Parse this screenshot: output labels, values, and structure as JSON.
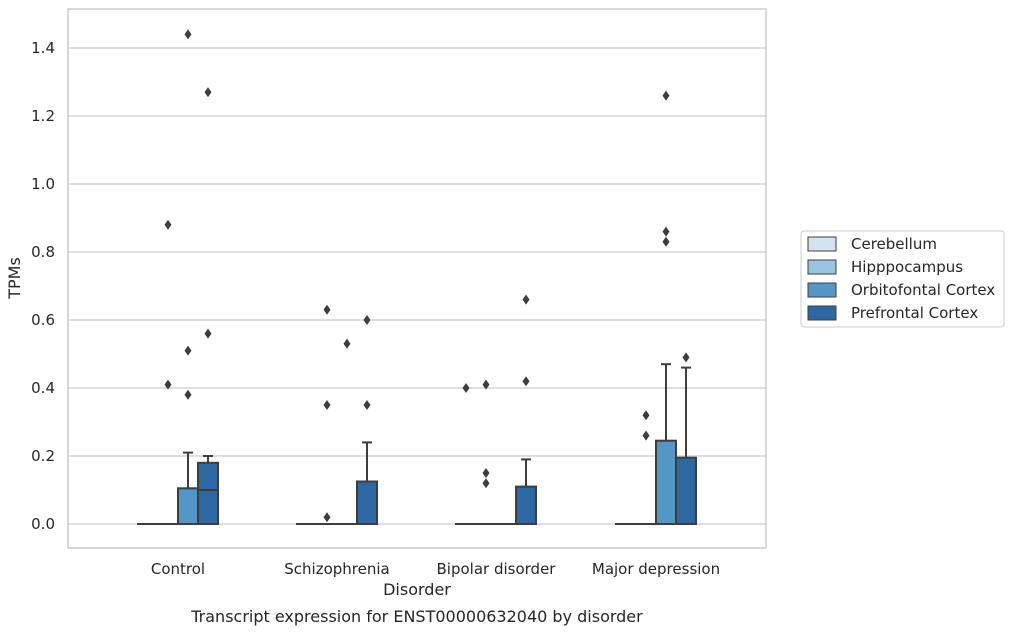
{
  "caption": "Transcript expression for ENST00000632040 by disorder",
  "chart_data": {
    "type": "box",
    "xlabel": "Disorder",
    "ylabel": "TPMs",
    "categories": [
      "Control",
      "Schizophrenia",
      "Bipolar disorder",
      "Major depression"
    ],
    "ylim": [
      -0.07,
      1.52
    ],
    "yticks": [
      0.0,
      0.2,
      0.4,
      0.6,
      0.8,
      1.0,
      1.2,
      1.4
    ],
    "ytick_labels": [
      "0.0",
      "0.2",
      "0.4",
      "0.6",
      "0.8",
      "1.0",
      "1.2",
      "1.4"
    ],
    "grid": "horizontal",
    "legend_position": "right",
    "series": [
      {
        "name": "Cerebellum",
        "color": "#d4e3f1",
        "boxes": [
          {
            "q1": 0,
            "median": 0,
            "q3": 0,
            "whisker_low": 0,
            "whisker_high": 0,
            "outliers": []
          },
          {
            "q1": 0,
            "median": 0,
            "q3": 0,
            "whisker_low": 0,
            "whisker_high": 0,
            "outliers": []
          },
          {
            "q1": 0,
            "median": 0,
            "q3": 0,
            "whisker_low": 0,
            "whisker_high": 0,
            "outliers": [
              0.4
            ]
          },
          {
            "q1": 0,
            "median": 0,
            "q3": 0,
            "whisker_low": 0,
            "whisker_high": 0,
            "outliers": []
          }
        ]
      },
      {
        "name": "Hipppocampus",
        "color": "#9cc3e0",
        "boxes": [
          {
            "q1": 0,
            "median": 0,
            "q3": 0,
            "whisker_low": 0,
            "whisker_high": 0,
            "outliers": [
              0.88,
              0.41
            ]
          },
          {
            "q1": 0,
            "median": 0,
            "q3": 0,
            "whisker_low": 0,
            "whisker_high": 0,
            "outliers": [
              0.63,
              0.35,
              0.02
            ]
          },
          {
            "q1": 0,
            "median": 0,
            "q3": 0,
            "whisker_low": 0,
            "whisker_high": 0,
            "outliers": [
              0.41,
              0.15,
              0.12
            ]
          },
          {
            "q1": 0,
            "median": 0,
            "q3": 0,
            "whisker_low": 0,
            "whisker_high": 0,
            "outliers": [
              0.32,
              0.26
            ]
          }
        ]
      },
      {
        "name": "Orbitofontal Cortex",
        "color": "#5497c6",
        "boxes": [
          {
            "q1": 0,
            "median": 0,
            "q3": 0.105,
            "whisker_low": 0,
            "whisker_high": 0.21,
            "outliers": [
              1.44,
              0.51,
              0.38
            ]
          },
          {
            "q1": 0,
            "median": 0,
            "q3": 0,
            "whisker_low": 0,
            "whisker_high": 0,
            "outliers": [
              0.53
            ]
          },
          {
            "q1": 0,
            "median": 0,
            "q3": 0,
            "whisker_low": 0,
            "whisker_high": 0,
            "outliers": []
          },
          {
            "q1": 0,
            "median": 0,
            "q3": 0.245,
            "whisker_low": 0,
            "whisker_high": 0.47,
            "outliers": [
              1.26,
              0.86,
              0.83
            ]
          }
        ]
      },
      {
        "name": "Prefrontal Cortex",
        "color": "#2d68a3",
        "boxes": [
          {
            "q1": 0,
            "median": 0.1,
            "q3": 0.18,
            "whisker_low": 0,
            "whisker_high": 0.2,
            "outliers": [
              1.27,
              0.56
            ]
          },
          {
            "q1": 0,
            "median": 0,
            "q3": 0.125,
            "whisker_low": 0,
            "whisker_high": 0.24,
            "outliers": [
              0.6,
              0.35
            ]
          },
          {
            "q1": 0,
            "median": 0,
            "q3": 0.11,
            "whisker_low": 0,
            "whisker_high": 0.19,
            "outliers": [
              0.66,
              0.42
            ]
          },
          {
            "q1": 0,
            "median": 0,
            "q3": 0.195,
            "whisker_low": 0,
            "whisker_high": 0.46,
            "outliers": [
              0.49
            ]
          }
        ]
      }
    ]
  }
}
